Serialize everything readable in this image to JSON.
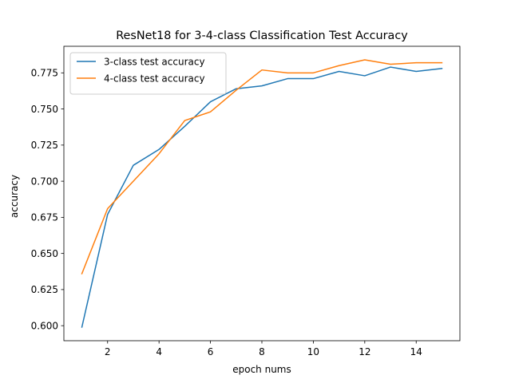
{
  "chart_data": {
    "type": "line",
    "title": "ResNet18 for 3-4-class Classification Test Accuracy",
    "xlabel": "epoch nums",
    "ylabel": "accuracy",
    "xlim": [
      0.3,
      15.7
    ],
    "ylim": [
      0.5896,
      0.7934
    ],
    "xticks": [
      2,
      4,
      6,
      8,
      10,
      12,
      14
    ],
    "xtick_labels": [
      "2",
      "4",
      "6",
      "8",
      "10",
      "12",
      "14"
    ],
    "yticks": [
      0.6,
      0.625,
      0.65,
      0.675,
      0.7,
      0.725,
      0.75,
      0.775
    ],
    "ytick_labels": [
      "0.600",
      "0.625",
      "0.650",
      "0.675",
      "0.700",
      "0.725",
      "0.750",
      "0.775"
    ],
    "grid": false,
    "legend_position": "upper-left",
    "x": [
      1,
      2,
      3,
      4,
      5,
      6,
      7,
      8,
      9,
      10,
      11,
      12,
      13,
      14,
      15
    ],
    "series": [
      {
        "name": "3-class test accuracy",
        "color": "#1f77b4",
        "values": [
          0.599,
          0.677,
          0.711,
          0.722,
          0.738,
          0.755,
          0.764,
          0.766,
          0.771,
          0.771,
          0.776,
          0.773,
          0.779,
          0.776,
          0.778
        ]
      },
      {
        "name": "4-class test accuracy",
        "color": "#ff7f0e",
        "values": [
          0.636,
          0.681,
          0.7,
          0.719,
          0.742,
          0.748,
          0.763,
          0.777,
          0.775,
          0.775,
          0.78,
          0.784,
          0.781,
          0.782,
          0.782
        ]
      }
    ]
  }
}
